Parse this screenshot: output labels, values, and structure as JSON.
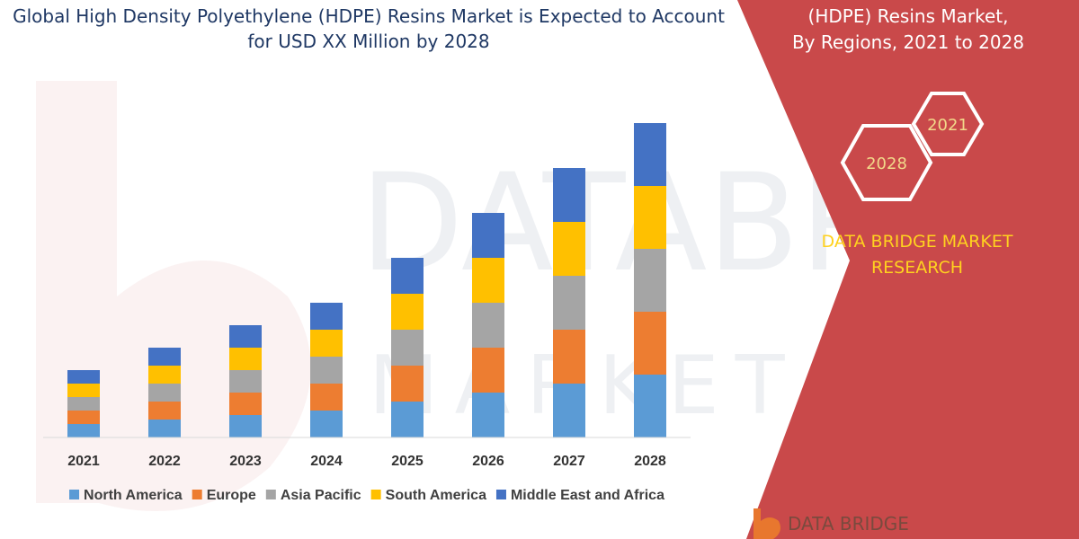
{
  "header": {
    "title_line1": "Global High Density Polyethylene (HDPE) Resins Market is Expected to Account",
    "title_line2": "for USD XX Million by 2028"
  },
  "side_panel": {
    "title_line1": "(HDPE) Resins Market,",
    "title_line2": "By Regions, 2021 to 2028",
    "hex_badges": [
      "2021",
      "2028"
    ],
    "brand_line1": "DATA BRIDGE MARKET",
    "brand_line2": "RESEARCH",
    "logo_text": "DATA BRIDGE",
    "background_color": "#c9494a"
  },
  "chart_data": {
    "type": "bar",
    "stacked": true,
    "categories": [
      "2021",
      "2022",
      "2023",
      "2024",
      "2025",
      "2026",
      "2027",
      "2028"
    ],
    "series": [
      {
        "name": "North America",
        "color": "#5b9bd5",
        "values": [
          15,
          20,
          25,
          30,
          40,
          50,
          60,
          70
        ]
      },
      {
        "name": "Europe",
        "color": "#ed7d31",
        "values": [
          15,
          20,
          25,
          30,
          40,
          50,
          60,
          70
        ]
      },
      {
        "name": "Asia Pacific",
        "color": "#a5a5a5",
        "values": [
          15,
          20,
          25,
          30,
          40,
          50,
          60,
          70
        ]
      },
      {
        "name": "South America",
        "color": "#ffc000",
        "values": [
          15,
          20,
          25,
          30,
          40,
          50,
          60,
          70
        ]
      },
      {
        "name": "Middle East and Africa",
        "color": "#4472c4",
        "values": [
          15,
          20,
          25,
          30,
          40,
          50,
          60,
          70
        ]
      }
    ],
    "ylim": [
      0,
      350
    ],
    "y_axis_visible": false,
    "grid": false,
    "legend_position": "bottom"
  }
}
